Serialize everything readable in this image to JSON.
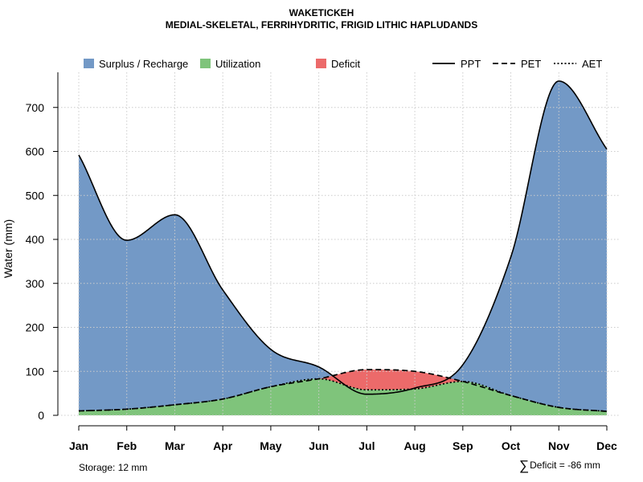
{
  "chart_data": {
    "type": "area",
    "title": "WAKETICKEH",
    "subtitle": "MEDIAL-SKELETAL, FERRIHYDRITIC, FRIGID LITHIC HAPLUDANDS",
    "xlabel": "",
    "ylabel": "Water (mm)",
    "ylim": [
      0,
      770
    ],
    "yticks": [
      0,
      100,
      200,
      300,
      400,
      500,
      600,
      700
    ],
    "categories": [
      "Jan",
      "Feb",
      "Mar",
      "Apr",
      "May",
      "Jun",
      "Jul",
      "Aug",
      "Sep",
      "Oct",
      "Nov",
      "Dec"
    ],
    "grid": true,
    "legend_position": "top",
    "series": [
      {
        "name": "PPT",
        "style": "solid",
        "values": [
          592,
          398,
          456,
          285,
          150,
          110,
          48,
          62,
          115,
          360,
          760,
          605
        ]
      },
      {
        "name": "PET",
        "style": "dashed",
        "values": [
          10,
          14,
          24,
          37,
          65,
          83,
          104,
          100,
          77,
          45,
          18,
          9
        ]
      },
      {
        "name": "AET",
        "style": "dotted",
        "values": [
          10,
          14,
          24,
          37,
          65,
          83,
          58,
          60,
          77,
          45,
          18,
          9
        ]
      }
    ],
    "fill_legend": [
      {
        "name": "Surplus / Recharge",
        "color": "#7399c6"
      },
      {
        "name": "Utilization",
        "color": "#7fc47b"
      },
      {
        "name": "Deficit",
        "color": "#ec6a6a"
      }
    ]
  },
  "notes": {
    "storage": "Storage: 12 mm",
    "deficit": "Deficit = -86 mm"
  }
}
